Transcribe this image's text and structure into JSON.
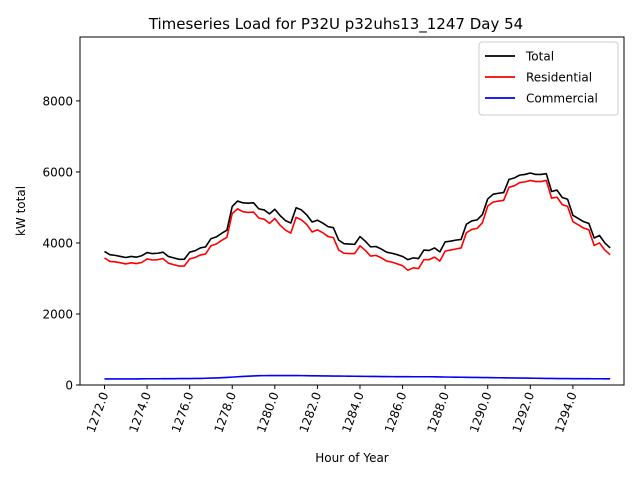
{
  "chart_data": {
    "type": "line",
    "title": "Timeseries Load for P32U p32uhs13_1247  Day 54",
    "xlabel": "Hour of Year",
    "ylabel": "kW total",
    "xlim": [
      1270.85,
      1296.4
    ],
    "ylim": [
      0,
      9800
    ],
    "x_ticks": [
      1272,
      1274,
      1276,
      1278,
      1280,
      1282,
      1284,
      1286,
      1288,
      1290,
      1292,
      1294
    ],
    "x_tick_labels": [
      "1272.0",
      "1274.0",
      "1276.0",
      "1278.0",
      "1280.0",
      "1282.0",
      "1284.0",
      "1286.0",
      "1288.0",
      "1290.0",
      "1292.0",
      "1294.0"
    ],
    "y_ticks": [
      0,
      2000,
      4000,
      6000,
      8000
    ],
    "y_tick_labels": [
      "0",
      "2000",
      "4000",
      "6000",
      "8000"
    ],
    "legend_position": "top-right",
    "x_start": 1272,
    "x_step": 0.25,
    "series": [
      {
        "name": "Total",
        "color": "#000000",
        "values": [
          3760,
          3670,
          3650,
          3620,
          3590,
          3620,
          3600,
          3640,
          3730,
          3700,
          3710,
          3740,
          3620,
          3580,
          3540,
          3540,
          3740,
          3780,
          3860,
          3890,
          4120,
          4170,
          4270,
          4360,
          5030,
          5180,
          5130,
          5120,
          5130,
          4960,
          4930,
          4820,
          4950,
          4770,
          4630,
          4560,
          4990,
          4930,
          4790,
          4590,
          4640,
          4560,
          4460,
          4430,
          4080,
          3980,
          3970,
          3960,
          4180,
          4050,
          3890,
          3900,
          3830,
          3740,
          3710,
          3670,
          3620,
          3530,
          3580,
          3560,
          3800,
          3790,
          3860,
          3750,
          4030,
          4050,
          4080,
          4100,
          4530,
          4620,
          4650,
          4800,
          5240,
          5370,
          5400,
          5420,
          5790,
          5830,
          5910,
          5930,
          5970,
          5930,
          5930,
          5950,
          5450,
          5490,
          5280,
          5230,
          4780,
          4690,
          4600,
          4550,
          4140,
          4210,
          4000,
          3860
        ]
      },
      {
        "name": "Residential",
        "color": "#ff0000",
        "values": [
          3580,
          3480,
          3470,
          3440,
          3410,
          3440,
          3420,
          3450,
          3550,
          3520,
          3530,
          3560,
          3430,
          3390,
          3350,
          3350,
          3550,
          3590,
          3660,
          3690,
          3920,
          3970,
          4070,
          4160,
          4830,
          4960,
          4880,
          4860,
          4870,
          4700,
          4670,
          4550,
          4690,
          4500,
          4360,
          4280,
          4720,
          4650,
          4520,
          4310,
          4370,
          4290,
          4180,
          4150,
          3800,
          3710,
          3700,
          3700,
          3920,
          3790,
          3630,
          3650,
          3580,
          3490,
          3460,
          3410,
          3360,
          3230,
          3300,
          3280,
          3530,
          3530,
          3600,
          3490,
          3770,
          3800,
          3830,
          3860,
          4290,
          4380,
          4410,
          4570,
          5040,
          5150,
          5180,
          5200,
          5570,
          5610,
          5700,
          5720,
          5760,
          5730,
          5730,
          5760,
          5260,
          5290,
          5080,
          5030,
          4600,
          4510,
          4420,
          4370,
          3930,
          4000,
          3800,
          3670
        ]
      },
      {
        "name": "Commercial",
        "color": "#0000ff",
        "values": [
          170,
          170,
          170,
          170,
          170,
          172,
          172,
          174,
          176,
          176,
          176,
          178,
          178,
          178,
          180,
          180,
          182,
          184,
          186,
          190,
          195,
          200,
          205,
          212,
          222,
          232,
          240,
          248,
          255,
          262,
          264,
          266,
          265,
          266,
          266,
          266,
          265,
          264,
          262,
          260,
          258,
          256,
          254,
          253,
          252,
          250,
          248,
          246,
          244,
          243,
          242,
          240,
          238,
          237,
          236,
          235,
          234,
          233,
          232,
          232,
          232,
          232,
          230,
          228,
          225,
          222,
          220,
          218,
          216,
          214,
          212,
          210,
          208,
          206,
          204,
          202,
          200,
          198,
          196,
          194,
          192,
          190,
          188,
          186,
          184,
          182,
          180,
          180,
          178,
          178,
          178,
          178,
          176,
          176,
          175,
          175
        ]
      }
    ]
  }
}
